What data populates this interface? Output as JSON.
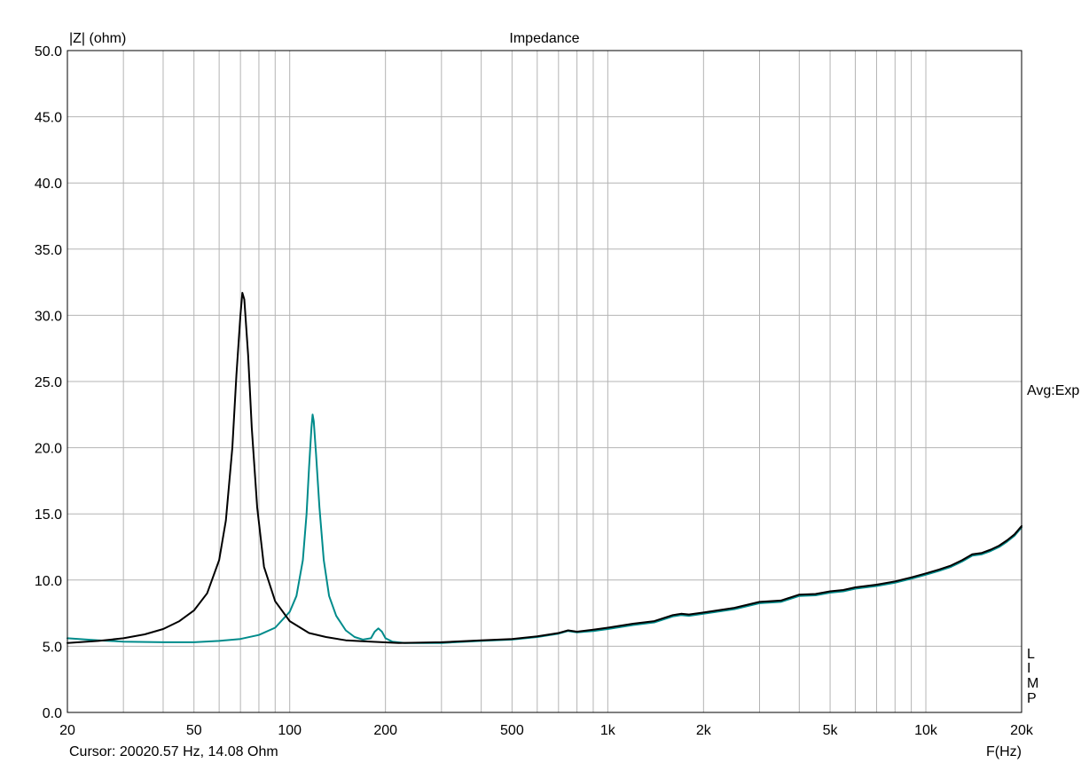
{
  "chart_data": {
    "type": "line",
    "title": "Impedance",
    "ylabel": "|Z| (ohm)",
    "xlabel": "F(Hz)",
    "xscale": "log",
    "xlim": [
      20,
      20000
    ],
    "ylim": [
      0,
      50
    ],
    "grid": true,
    "x_tick_labels": [
      {
        "value": 20,
        "label": "20"
      },
      {
        "value": 50,
        "label": "50"
      },
      {
        "value": 100,
        "label": "100"
      },
      {
        "value": 200,
        "label": "200"
      },
      {
        "value": 500,
        "label": "500"
      },
      {
        "value": 1000,
        "label": "1k"
      },
      {
        "value": 2000,
        "label": "2k"
      },
      {
        "value": 5000,
        "label": "5k"
      },
      {
        "value": 10000,
        "label": "10k"
      },
      {
        "value": 20000,
        "label": "20k"
      }
    ],
    "y_tick_labels": [
      "0.0",
      "5.0",
      "10.0",
      "15.0",
      "20.0",
      "25.0",
      "30.0",
      "35.0",
      "40.0",
      "45.0",
      "50.0"
    ],
    "series": [
      {
        "color": "#000000",
        "points": [
          [
            20,
            5.25
          ],
          [
            25,
            5.4
          ],
          [
            30,
            5.6
          ],
          [
            35,
            5.9
          ],
          [
            40,
            6.3
          ],
          [
            45,
            6.9
          ],
          [
            50,
            7.7
          ],
          [
            55,
            9.0
          ],
          [
            60,
            11.5
          ],
          [
            63,
            14.5
          ],
          [
            66,
            20.0
          ],
          [
            68,
            25.5
          ],
          [
            70,
            30.0
          ],
          [
            71,
            31.7
          ],
          [
            72,
            31.2
          ],
          [
            74,
            27.0
          ],
          [
            76,
            21.5
          ],
          [
            79,
            15.5
          ],
          [
            83,
            11.0
          ],
          [
            90,
            8.4
          ],
          [
            100,
            6.9
          ],
          [
            115,
            6.0
          ],
          [
            130,
            5.7
          ],
          [
            150,
            5.45
          ],
          [
            180,
            5.35
          ],
          [
            220,
            5.25
          ],
          [
            300,
            5.3
          ],
          [
            400,
            5.45
          ],
          [
            500,
            5.55
          ],
          [
            600,
            5.75
          ],
          [
            700,
            6.0
          ],
          [
            750,
            6.2
          ],
          [
            800,
            6.1
          ],
          [
            900,
            6.25
          ],
          [
            1000,
            6.4
          ],
          [
            1200,
            6.7
          ],
          [
            1400,
            6.9
          ],
          [
            1600,
            7.35
          ],
          [
            1700,
            7.45
          ],
          [
            1800,
            7.4
          ],
          [
            2000,
            7.55
          ],
          [
            2500,
            7.9
          ],
          [
            3000,
            8.35
          ],
          [
            3500,
            8.45
          ],
          [
            4000,
            8.9
          ],
          [
            4500,
            8.95
          ],
          [
            5000,
            9.15
          ],
          [
            5500,
            9.25
          ],
          [
            6000,
            9.45
          ],
          [
            7000,
            9.65
          ],
          [
            8000,
            9.9
          ],
          [
            9000,
            10.2
          ],
          [
            10000,
            10.5
          ],
          [
            11000,
            10.8
          ],
          [
            12000,
            11.1
          ],
          [
            13000,
            11.5
          ],
          [
            14000,
            11.95
          ],
          [
            15000,
            12.05
          ],
          [
            16000,
            12.3
          ],
          [
            17000,
            12.6
          ],
          [
            18000,
            13.0
          ],
          [
            19000,
            13.45
          ],
          [
            20000,
            14.08
          ]
        ]
      },
      {
        "color": "#008B8B",
        "points": [
          [
            20,
            5.6
          ],
          [
            25,
            5.45
          ],
          [
            30,
            5.35
          ],
          [
            40,
            5.3
          ],
          [
            50,
            5.3
          ],
          [
            60,
            5.4
          ],
          [
            70,
            5.55
          ],
          [
            80,
            5.85
          ],
          [
            90,
            6.4
          ],
          [
            100,
            7.6
          ],
          [
            105,
            8.8
          ],
          [
            110,
            11.5
          ],
          [
            113,
            15.0
          ],
          [
            115,
            18.5
          ],
          [
            117,
            21.5
          ],
          [
            118,
            22.5
          ],
          [
            119,
            22.0
          ],
          [
            121,
            19.5
          ],
          [
            124,
            15.5
          ],
          [
            128,
            11.5
          ],
          [
            133,
            8.8
          ],
          [
            140,
            7.3
          ],
          [
            150,
            6.2
          ],
          [
            160,
            5.7
          ],
          [
            170,
            5.5
          ],
          [
            180,
            5.6
          ],
          [
            185,
            6.1
          ],
          [
            190,
            6.35
          ],
          [
            195,
            6.1
          ],
          [
            200,
            5.6
          ],
          [
            210,
            5.35
          ],
          [
            230,
            5.25
          ],
          [
            300,
            5.25
          ],
          [
            400,
            5.4
          ],
          [
            500,
            5.5
          ],
          [
            600,
            5.7
          ],
          [
            700,
            5.95
          ],
          [
            750,
            6.15
          ],
          [
            800,
            6.05
          ],
          [
            900,
            6.15
          ],
          [
            1000,
            6.3
          ],
          [
            1200,
            6.6
          ],
          [
            1400,
            6.8
          ],
          [
            1600,
            7.25
          ],
          [
            1700,
            7.35
          ],
          [
            1800,
            7.3
          ],
          [
            2000,
            7.45
          ],
          [
            2500,
            7.8
          ],
          [
            3000,
            8.25
          ],
          [
            3500,
            8.35
          ],
          [
            4000,
            8.8
          ],
          [
            4500,
            8.85
          ],
          [
            5000,
            9.05
          ],
          [
            5500,
            9.15
          ],
          [
            6000,
            9.35
          ],
          [
            7000,
            9.55
          ],
          [
            8000,
            9.8
          ],
          [
            9000,
            10.1
          ],
          [
            10000,
            10.4
          ],
          [
            11000,
            10.7
          ],
          [
            12000,
            11.0
          ],
          [
            13000,
            11.4
          ],
          [
            14000,
            11.85
          ],
          [
            15000,
            11.95
          ],
          [
            16000,
            12.2
          ],
          [
            17000,
            12.5
          ],
          [
            18000,
            12.9
          ],
          [
            19000,
            13.35
          ],
          [
            20000,
            13.98
          ]
        ]
      }
    ],
    "annotations": {
      "avg": "Avg:Exp",
      "limp": [
        "L",
        "I",
        "M",
        "P"
      ],
      "cursor": "Cursor: 20020.57 Hz, 14.08 Ohm"
    }
  }
}
